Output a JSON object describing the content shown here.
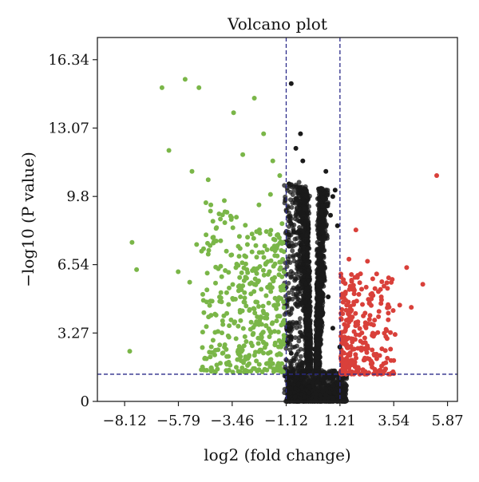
{
  "chart_data": {
    "type": "scatter",
    "title": "Volcano plot",
    "xlabel": "log2 (fold change)",
    "ylabel": "−log10 (P value)",
    "xlim": [
      -9.3,
      6.3
    ],
    "ylim": [
      0,
      17.4
    ],
    "x_ticks": [
      -8.12,
      -5.79,
      -3.46,
      -1.12,
      1.21,
      3.54,
      5.87
    ],
    "x_tick_labels": [
      "−8.12",
      "−5.79",
      "−3.46",
      "−1.12",
      "1.21",
      "3.54",
      "5.87"
    ],
    "y_ticks": [
      0,
      3.27,
      6.54,
      9.8,
      13.07,
      16.34
    ],
    "y_tick_labels": [
      "0",
      "3.27",
      "6.54",
      "9.8",
      "13.07",
      "16.34"
    ],
    "thresholds": {
      "log2fc_low": -1.12,
      "log2fc_high": 1.21,
      "neg_log10_p": 1.3
    },
    "colors": {
      "down": "#7ab648",
      "up": "#d9403a",
      "not_significant": "#1a1a1a",
      "threshold_line": "#2b2b8a"
    },
    "series": [
      {
        "key": "down",
        "points": [
          [
            -6.5,
            15.0
          ],
          [
            -5.5,
            15.4
          ],
          [
            -4.9,
            15.0
          ],
          [
            -3.4,
            13.8
          ],
          [
            -2.5,
            14.5
          ],
          [
            -6.2,
            12.0
          ],
          [
            -5.2,
            11.0
          ],
          [
            -4.5,
            10.6
          ],
          [
            -3.0,
            11.8
          ],
          [
            -2.1,
            12.8
          ],
          [
            -1.7,
            11.5
          ],
          [
            -3.8,
            9.6
          ],
          [
            -4.6,
            9.5
          ],
          [
            -5.0,
            7.5
          ],
          [
            -5.8,
            6.2
          ],
          [
            -7.8,
            7.6
          ],
          [
            -7.6,
            6.3
          ],
          [
            -7.9,
            2.4
          ],
          [
            -5.3,
            5.7
          ],
          [
            -3.7,
            5.2
          ],
          [
            -4.4,
            4.8
          ],
          [
            -4.2,
            3.3
          ],
          [
            -4.0,
            2.7
          ],
          [
            -3.6,
            1.5
          ],
          [
            -2.8,
            7.5
          ],
          [
            -2.4,
            6.9
          ],
          [
            -2.0,
            6.6
          ],
          [
            -1.6,
            7.2
          ],
          [
            -1.3,
            8.5
          ],
          [
            -2.6,
            8.0
          ],
          [
            -3.1,
            5.0
          ],
          [
            -3.2,
            3.6
          ],
          [
            -2.7,
            4.4
          ],
          [
            -2.2,
            3.2
          ],
          [
            -1.9,
            2.3
          ],
          [
            -1.5,
            1.7
          ],
          [
            -2.3,
            9.4
          ],
          [
            -1.8,
            9.9
          ],
          [
            -1.4,
            10.8
          ],
          [
            -3.5,
            8.7
          ],
          [
            -4.7,
            7.3
          ],
          [
            -2.9,
            2.0
          ],
          [
            -1.3,
            1.4
          ],
          [
            -1.6,
            4.6
          ],
          [
            -2.5,
            5.6
          ]
        ]
      },
      {
        "key": "up",
        "points": [
          [
            5.4,
            10.8
          ],
          [
            4.8,
            5.6
          ],
          [
            4.3,
            4.5
          ],
          [
            4.1,
            6.4
          ],
          [
            3.8,
            4.6
          ],
          [
            3.4,
            2.5
          ],
          [
            3.1,
            1.8
          ],
          [
            3.6,
            3.2
          ],
          [
            2.9,
            4.3
          ],
          [
            2.6,
            5.1
          ],
          [
            2.1,
            6.1
          ],
          [
            1.9,
            8.2
          ],
          [
            1.6,
            6.8
          ],
          [
            2.3,
            3.6
          ],
          [
            2.7,
            2.2
          ],
          [
            2.0,
            1.5
          ],
          [
            1.7,
            3.0
          ],
          [
            1.5,
            4.6
          ],
          [
            1.4,
            2.0
          ],
          [
            2.4,
            6.7
          ],
          [
            3.3,
            3.9
          ],
          [
            1.8,
            5.4
          ],
          [
            2.2,
            2.8
          ],
          [
            1.6,
            1.6
          ],
          [
            3.0,
            5.0
          ]
        ]
      },
      {
        "key": "not_significant",
        "points": [
          [
            -0.9,
            15.2
          ],
          [
            -0.5,
            12.8
          ],
          [
            -0.7,
            12.1
          ],
          [
            0.6,
            11.0
          ],
          [
            0.9,
            9.8
          ],
          [
            -0.4,
            11.5
          ],
          [
            -0.2,
            7.3
          ],
          [
            0.3,
            6.8
          ],
          [
            0.8,
            8.9
          ],
          [
            -0.6,
            9.6
          ],
          [
            -1.0,
            10.4
          ],
          [
            0.5,
            7.9
          ],
          [
            1.0,
            10.1
          ],
          [
            -0.3,
            9.2
          ],
          [
            0.2,
            5.6
          ],
          [
            0.7,
            5.0
          ],
          [
            -0.8,
            8.1
          ],
          [
            1.1,
            8.4
          ],
          [
            0.4,
            4.1
          ],
          [
            -0.1,
            3.2
          ],
          [
            0.1,
            2.5
          ],
          [
            -0.5,
            4.7
          ],
          [
            0.9,
            3.5
          ],
          [
            -0.9,
            2.3
          ],
          [
            1.2,
            2.6
          ]
        ]
      }
    ]
  }
}
